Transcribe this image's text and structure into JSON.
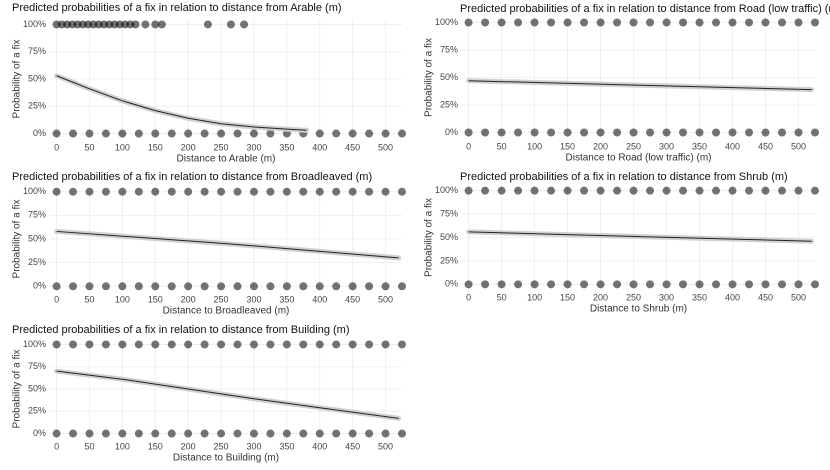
{
  "chart_data": [
    {
      "type": "line",
      "title": "Predicted probabilities of a fix in relation to distance from Arable (m)",
      "xlabel": "Distance to Arable (m)",
      "ylabel": "Probability of a fix",
      "xlim": [
        -10,
        525
      ],
      "xticks": [
        0,
        50,
        100,
        150,
        200,
        250,
        300,
        350,
        400,
        450,
        500
      ],
      "ylim": [
        -5,
        105
      ],
      "yticks": [
        {
          "value": 0,
          "label": "0%"
        },
        {
          "value": 25,
          "label": "25%"
        },
        {
          "value": 50,
          "label": "50%"
        },
        {
          "value": 75,
          "label": "75%"
        },
        {
          "value": 100,
          "label": "100%"
        }
      ],
      "grid": true,
      "color": "#222222",
      "line": {
        "x": [
          0,
          50,
          100,
          150,
          200,
          250,
          300,
          350,
          380
        ],
        "values": [
          53,
          41,
          30,
          21,
          14,
          9,
          6,
          4,
          3
        ]
      },
      "points": {
        "x": [
          0,
          8,
          16,
          24,
          32,
          40,
          48,
          56,
          64,
          72,
          80,
          88,
          96,
          104,
          112,
          120,
          135,
          150,
          160,
          230,
          265,
          285,
          0,
          25,
          50,
          75,
          100,
          125,
          150,
          175,
          200,
          225,
          250,
          275,
          300,
          325,
          350,
          375,
          400,
          425,
          450,
          475,
          500,
          525
        ],
        "values": [
          100,
          100,
          100,
          100,
          100,
          100,
          100,
          100,
          100,
          100,
          100,
          100,
          100,
          100,
          100,
          100,
          100,
          100,
          100,
          100,
          100,
          100,
          0,
          0,
          0,
          0,
          0,
          0,
          0,
          0,
          0,
          0,
          0,
          0,
          0,
          0,
          0,
          0,
          0,
          0,
          0,
          0,
          0,
          0
        ]
      }
    },
    {
      "type": "line",
      "title": "Predicted probabilities of a fix in relation to distance from Road (low traffic) (m)",
      "xlabel": "Distance to Road (low traffic) (m)",
      "ylabel": "Probability of a fix",
      "xlim": [
        -10,
        525
      ],
      "xticks": [
        0,
        50,
        100,
        150,
        200,
        250,
        300,
        350,
        400,
        450,
        500
      ],
      "ylim": [
        -5,
        105
      ],
      "yticks": [
        {
          "value": 0,
          "label": "0%"
        },
        {
          "value": 25,
          "label": "25%"
        },
        {
          "value": 50,
          "label": "50%"
        },
        {
          "value": 75,
          "label": "75%"
        },
        {
          "value": 100,
          "label": "100%"
        }
      ],
      "grid": true,
      "color": "#222222",
      "line": {
        "x": [
          0,
          260,
          520
        ],
        "values": [
          47,
          43,
          39
        ]
      },
      "points": {
        "x": [
          0,
          25,
          50,
          75,
          100,
          125,
          150,
          175,
          200,
          225,
          250,
          275,
          300,
          325,
          350,
          375,
          400,
          425,
          450,
          475,
          500,
          525,
          0,
          25,
          50,
          75,
          100,
          125,
          150,
          175,
          200,
          225,
          250,
          275,
          300,
          325,
          350,
          375,
          400,
          425,
          450,
          475,
          500,
          525
        ],
        "values": [
          100,
          100,
          100,
          100,
          100,
          100,
          100,
          100,
          100,
          100,
          100,
          100,
          100,
          100,
          100,
          100,
          100,
          100,
          100,
          100,
          100,
          100,
          0,
          0,
          0,
          0,
          0,
          0,
          0,
          0,
          0,
          0,
          0,
          0,
          0,
          0,
          0,
          0,
          0,
          0,
          0,
          0,
          0,
          0
        ]
      }
    },
    {
      "type": "line",
      "title": "Predicted probabilities of a fix in relation to distance from Broadleaved (m)",
      "xlabel": "Distance to Broadleaved (m)",
      "ylabel": "Probability of a fix",
      "xlim": [
        -10,
        525
      ],
      "xticks": [
        0,
        50,
        100,
        150,
        200,
        250,
        300,
        350,
        400,
        450,
        500
      ],
      "ylim": [
        -5,
        105
      ],
      "yticks": [
        {
          "value": 0,
          "label": "0%"
        },
        {
          "value": 25,
          "label": "25%"
        },
        {
          "value": 50,
          "label": "50%"
        },
        {
          "value": 75,
          "label": "75%"
        },
        {
          "value": 100,
          "label": "100%"
        }
      ],
      "grid": true,
      "color": "#222222",
      "line": {
        "x": [
          0,
          260,
          520
        ],
        "values": [
          58,
          45,
          30
        ]
      },
      "points": {
        "x": [
          0,
          25,
          50,
          75,
          100,
          125,
          150,
          175,
          200,
          225,
          250,
          275,
          300,
          325,
          350,
          375,
          400,
          425,
          450,
          475,
          500,
          525,
          0,
          25,
          50,
          75,
          100,
          125,
          150,
          175,
          200,
          225,
          250,
          275,
          300,
          325,
          350,
          375,
          400,
          425,
          450,
          475,
          500,
          525
        ],
        "values": [
          100,
          100,
          100,
          100,
          100,
          100,
          100,
          100,
          100,
          100,
          100,
          100,
          100,
          100,
          100,
          100,
          100,
          100,
          100,
          100,
          100,
          100,
          0,
          0,
          0,
          0,
          0,
          0,
          0,
          0,
          0,
          0,
          0,
          0,
          0,
          0,
          0,
          0,
          0,
          0,
          0,
          0,
          0,
          0
        ]
      }
    },
    {
      "type": "line",
      "title": "Predicted probabilities of a fix in relation to distance from Shrub (m)",
      "xlabel": "Distance to Shrub (m)",
      "ylabel": "Probability of a fix",
      "xlim": [
        -10,
        525
      ],
      "xticks": [
        0,
        50,
        100,
        150,
        200,
        250,
        300,
        350,
        400,
        450,
        500
      ],
      "ylim": [
        -5,
        105
      ],
      "yticks": [
        {
          "value": 0,
          "label": "0%"
        },
        {
          "value": 25,
          "label": "25%"
        },
        {
          "value": 50,
          "label": "50%"
        },
        {
          "value": 75,
          "label": "75%"
        },
        {
          "value": 100,
          "label": "100%"
        }
      ],
      "grid": true,
      "color": "#222222",
      "line": {
        "x": [
          0,
          260,
          520
        ],
        "values": [
          56,
          51,
          46
        ]
      },
      "points": {
        "x": [
          0,
          25,
          50,
          75,
          100,
          125,
          150,
          175,
          200,
          225,
          250,
          275,
          300,
          325,
          350,
          375,
          400,
          425,
          450,
          475,
          500,
          525,
          0,
          25,
          50,
          75,
          100,
          125,
          150,
          175,
          200,
          225,
          250,
          275,
          300,
          325,
          350,
          375,
          400,
          425,
          450,
          475,
          500,
          525
        ],
        "values": [
          100,
          100,
          100,
          100,
          100,
          100,
          100,
          100,
          100,
          100,
          100,
          100,
          100,
          100,
          100,
          100,
          100,
          100,
          100,
          100,
          100,
          100,
          0,
          0,
          0,
          0,
          0,
          0,
          0,
          0,
          0,
          0,
          0,
          0,
          0,
          0,
          0,
          0,
          0,
          0,
          0,
          0,
          0,
          0
        ]
      }
    },
    {
      "type": "line",
      "title": "Predicted probabilities of a fix in relation to distance from Building (m)",
      "xlabel": "Distance to Building (m)",
      "ylabel": "Probability of a fix",
      "xlim": [
        -10,
        525
      ],
      "xticks": [
        0,
        50,
        100,
        150,
        200,
        250,
        300,
        350,
        400,
        450,
        500
      ],
      "ylim": [
        -5,
        105
      ],
      "yticks": [
        {
          "value": 0,
          "label": "0%"
        },
        {
          "value": 25,
          "label": "25%"
        },
        {
          "value": 50,
          "label": "50%"
        },
        {
          "value": 75,
          "label": "75%"
        },
        {
          "value": 100,
          "label": "100%"
        }
      ],
      "grid": true,
      "color": "#222222",
      "line": {
        "x": [
          0,
          100,
          200,
          300,
          400,
          520
        ],
        "values": [
          70,
          61,
          50,
          39,
          29,
          17
        ]
      },
      "points": {
        "x": [
          0,
          25,
          50,
          75,
          100,
          125,
          150,
          175,
          200,
          225,
          250,
          275,
          300,
          325,
          350,
          375,
          400,
          425,
          450,
          475,
          500,
          525,
          0,
          25,
          50,
          75,
          100,
          125,
          150,
          175,
          200,
          225,
          250,
          275,
          300,
          325,
          350,
          375,
          400,
          425,
          450,
          475,
          500,
          525
        ],
        "values": [
          100,
          100,
          100,
          100,
          100,
          100,
          100,
          100,
          100,
          100,
          100,
          100,
          100,
          100,
          100,
          100,
          100,
          100,
          100,
          100,
          100,
          100,
          0,
          0,
          0,
          0,
          0,
          0,
          0,
          0,
          0,
          0,
          0,
          0,
          0,
          0,
          0,
          0,
          0,
          0,
          0,
          0,
          0,
          0
        ]
      }
    }
  ]
}
